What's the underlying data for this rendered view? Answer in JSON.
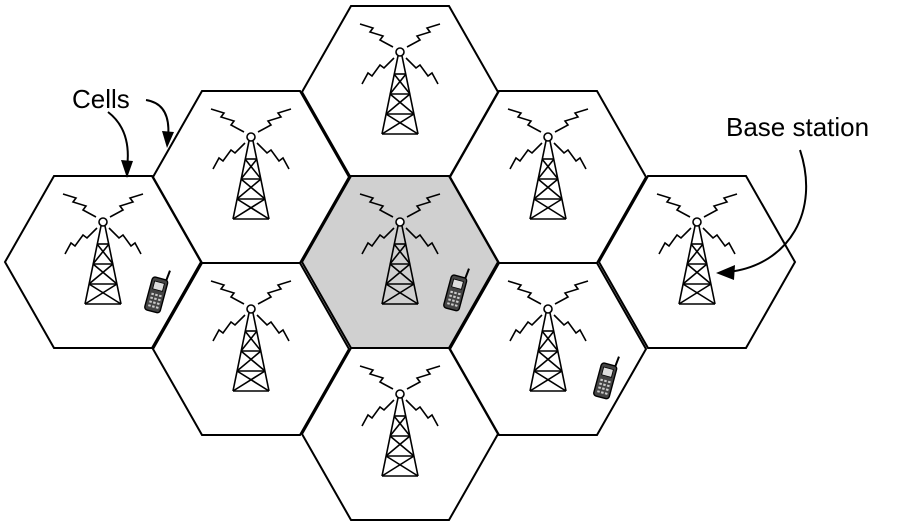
{
  "labels": {
    "cells": "Cells",
    "base_station": "Base station"
  },
  "colors": {
    "cell_fill": "#ffffff",
    "highlight_fill": "#d0d0d0",
    "stroke": "#000000"
  },
  "cells": [
    {
      "id": "left",
      "highlighted": false,
      "has_phone": true
    },
    {
      "id": "upper-left",
      "highlighted": false,
      "has_phone": false
    },
    {
      "id": "lower-left",
      "highlighted": false,
      "has_phone": false
    },
    {
      "id": "top",
      "highlighted": false,
      "has_phone": false
    },
    {
      "id": "center",
      "highlighted": true,
      "has_phone": true
    },
    {
      "id": "bottom",
      "highlighted": false,
      "has_phone": false
    },
    {
      "id": "upper-right",
      "highlighted": false,
      "has_phone": false
    },
    {
      "id": "lower-right",
      "highlighted": false,
      "has_phone": true
    },
    {
      "id": "right",
      "highlighted": false,
      "has_phone": false
    }
  ],
  "icons": {
    "tower": "radio-tower-icon",
    "phone": "mobile-phone-icon"
  }
}
